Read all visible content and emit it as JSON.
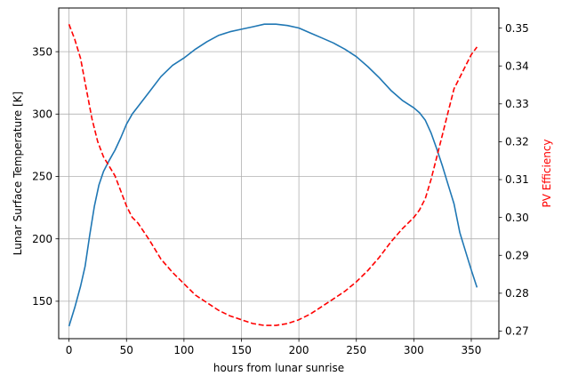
{
  "chart_data": {
    "type": "line",
    "xlabel": "hours from lunar sunrise",
    "ylabel": "Lunar Surface Temperature [K]",
    "ylabel_right": "PV Efficiency",
    "xlim": [
      -9,
      374
    ],
    "ylim": [
      120,
      385
    ],
    "ylim_right": [
      0.268,
      0.3553
    ],
    "x_ticks": [
      0,
      50,
      100,
      150,
      200,
      250,
      300,
      350
    ],
    "y_ticks": [
      150,
      200,
      250,
      300,
      350
    ],
    "y_ticks_right": [
      0.27,
      0.28,
      0.29,
      0.3,
      0.31,
      0.32,
      0.33,
      0.34,
      0.35
    ],
    "grid": true,
    "colors": {
      "temperature": "#1f77b4",
      "efficiency": "#ff0000",
      "right_axis_label": "#ff0000"
    },
    "series": [
      {
        "axis": "left",
        "style": "solid",
        "x": [
          0,
          5,
          10,
          14,
          18,
          22,
          26,
          30,
          35,
          40,
          45,
          50,
          55,
          60,
          70,
          80,
          90,
          100,
          110,
          120,
          130,
          140,
          150,
          160,
          170,
          180,
          190,
          200,
          210,
          220,
          230,
          240,
          250,
          260,
          270,
          280,
          290,
          300,
          305,
          310,
          315,
          320,
          325,
          330,
          335,
          340,
          345,
          350,
          355
        ],
        "values": [
          130,
          145,
          162,
          178,
          203,
          226,
          243,
          254,
          263,
          271,
          281,
          292,
          300,
          306,
          318,
          330,
          339,
          345,
          352,
          358,
          363,
          366,
          368,
          370,
          372,
          372,
          371,
          369,
          365,
          361,
          357,
          352,
          346,
          338,
          329,
          319,
          311,
          305,
          301,
          295,
          285,
          272,
          258,
          243,
          228,
          205,
          190,
          175,
          161
        ]
      },
      {
        "axis": "right",
        "style": "dashed",
        "x": [
          0,
          5,
          10,
          15,
          20,
          25,
          30,
          35,
          40,
          45,
          50,
          55,
          60,
          70,
          80,
          90,
          100,
          110,
          120,
          130,
          140,
          150,
          160,
          170,
          180,
          190,
          200,
          210,
          220,
          230,
          240,
          250,
          260,
          270,
          280,
          290,
          300,
          305,
          310,
          315,
          320,
          325,
          330,
          335,
          340,
          345,
          350,
          355
        ],
        "values": [
          0.351,
          0.347,
          0.342,
          0.334,
          0.326,
          0.32,
          0.316,
          0.3135,
          0.311,
          0.307,
          0.303,
          0.3,
          0.2985,
          0.294,
          0.289,
          0.2855,
          0.2825,
          0.2795,
          0.2775,
          0.2755,
          0.274,
          0.273,
          0.272,
          0.2715,
          0.2715,
          0.272,
          0.273,
          0.2745,
          0.2765,
          0.2785,
          0.2805,
          0.283,
          0.286,
          0.2895,
          0.2935,
          0.297,
          0.3,
          0.302,
          0.305,
          0.31,
          0.316,
          0.322,
          0.328,
          0.334,
          0.337,
          0.34,
          0.343,
          0.345
        ]
      }
    ]
  }
}
